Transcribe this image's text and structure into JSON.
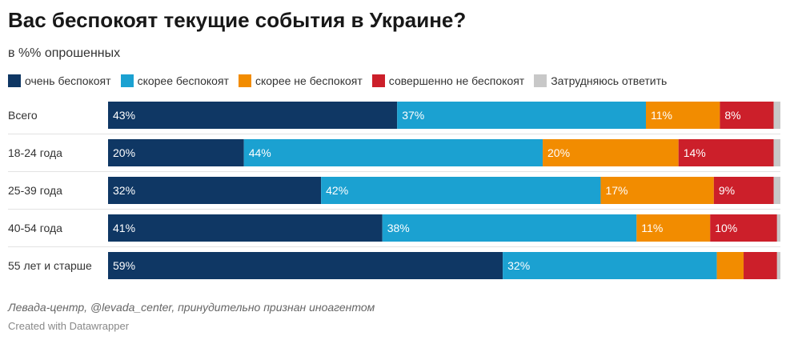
{
  "header": {
    "title": "Вас беспокоят текущие события в Украине?",
    "subtitle": "в %% опрошенных"
  },
  "footer": {
    "source": "Левада-центр, @levada_center, принудительно признан иноагентом",
    "credit": "Created with Datawrapper"
  },
  "chart_data": {
    "type": "bar",
    "orientation": "horizontal",
    "stacked": true,
    "unit": "%",
    "categories": [
      "Всего",
      "18-24 года",
      "25-39 года",
      "40-54 года",
      "55 лет и старше"
    ],
    "series": [
      {
        "name": "очень беспокоят",
        "color": "#0f3764",
        "values": [
          43,
          20,
          32,
          41,
          59
        ],
        "labels": [
          "43%",
          "20%",
          "32%",
          "41%",
          "59%"
        ]
      },
      {
        "name": "скорее беспокоят",
        "color": "#1ba1d1",
        "values": [
          37,
          44,
          42,
          38,
          32
        ],
        "labels": [
          "37%",
          "44%",
          "42%",
          "38%",
          "32%"
        ]
      },
      {
        "name": "скорее не беспокоят",
        "color": "#f28c00",
        "values": [
          11,
          20,
          17,
          11,
          4
        ],
        "labels": [
          "11%",
          "20%",
          "17%",
          "11%",
          ""
        ]
      },
      {
        "name": "совершенно не беспокоят",
        "color": "#cc1f2a",
        "values": [
          8,
          14,
          9,
          10,
          5
        ],
        "labels": [
          "8%",
          "14%",
          "9%",
          "10%",
          ""
        ]
      },
      {
        "name": "Затрудняюсь ответить",
        "color": "#c8c8c8",
        "values": [
          1,
          1,
          1,
          0.5,
          0.5
        ],
        "labels": [
          "",
          "",
          "",
          "",
          ""
        ]
      }
    ],
    "legend": "top-left",
    "grid": false
  }
}
